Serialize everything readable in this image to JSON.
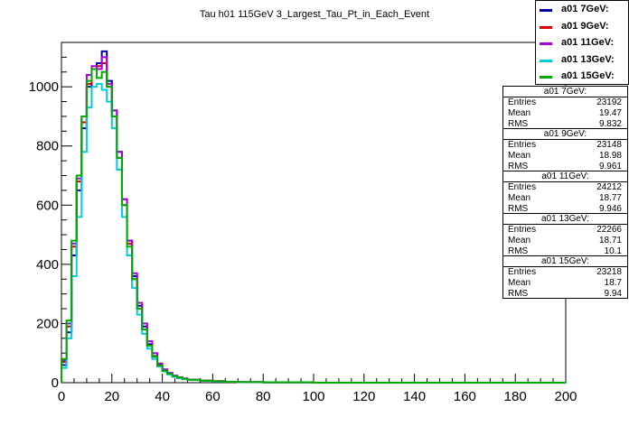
{
  "chart_data": {
    "type": "line",
    "title": "Tau h01 115GeV 3_Largest_Tau_Pt_in_Each_Event",
    "xlabel": "",
    "ylabel": "",
    "xlim": [
      0,
      200
    ],
    "ylim": [
      0,
      1150
    ],
    "x_ticks": [
      0,
      20,
      40,
      60,
      80,
      100,
      120,
      140,
      160,
      180,
      200
    ],
    "y_ticks": [
      0,
      200,
      400,
      600,
      800,
      1000
    ],
    "grid": false,
    "legend_position": "top-right",
    "series": [
      {
        "name": "a01 7GeV:",
        "color": "#0000aa",
        "x": [
          0,
          2,
          4,
          6,
          8,
          10,
          12,
          14,
          16,
          18,
          20,
          22,
          24,
          26,
          28,
          30,
          32,
          34,
          36,
          38,
          40,
          42,
          44,
          46,
          48,
          50,
          55,
          60,
          65,
          70,
          80,
          90,
          100,
          120,
          140,
          200
        ],
        "values": [
          60,
          170,
          430,
          650,
          860,
          1000,
          1060,
          1080,
          1120,
          1020,
          920,
          780,
          620,
          480,
          360,
          260,
          190,
          130,
          90,
          60,
          40,
          30,
          22,
          18,
          14,
          10,
          7,
          5,
          3,
          2,
          1,
          1,
          0,
          0,
          0,
          0
        ]
      },
      {
        "name": "a01 9GeV:",
        "color": "#dd0000",
        "x": [
          0,
          2,
          4,
          6,
          8,
          10,
          12,
          14,
          16,
          18,
          20,
          22,
          24,
          26,
          28,
          30,
          32,
          34,
          36,
          38,
          40,
          42,
          44,
          46,
          48,
          50,
          55,
          60,
          65,
          70,
          80,
          90,
          100,
          120,
          140,
          200
        ],
        "values": [
          70,
          190,
          460,
          680,
          880,
          1010,
          1060,
          1070,
          1080,
          1000,
          900,
          760,
          600,
          470,
          350,
          250,
          180,
          125,
          88,
          58,
          40,
          30,
          22,
          17,
          13,
          10,
          7,
          5,
          3,
          2,
          1,
          1,
          0,
          0,
          0,
          0
        ]
      },
      {
        "name": "a01 11GeV:",
        "color": "#aa00dd",
        "x": [
          0,
          2,
          4,
          6,
          8,
          10,
          12,
          14,
          16,
          18,
          20,
          22,
          24,
          26,
          28,
          30,
          32,
          34,
          36,
          38,
          40,
          42,
          44,
          46,
          48,
          50,
          55,
          60,
          65,
          70,
          80,
          90,
          100,
          120,
          140,
          200
        ],
        "values": [
          75,
          200,
          470,
          690,
          900,
          1040,
          1070,
          1060,
          1100,
          1010,
          920,
          780,
          620,
          480,
          370,
          270,
          200,
          140,
          100,
          65,
          45,
          33,
          24,
          18,
          14,
          10,
          7,
          5,
          3,
          2,
          1,
          1,
          0,
          0,
          0,
          0
        ]
      },
      {
        "name": "a01 13GeV:",
        "color": "#00ccdd",
        "x": [
          0,
          2,
          4,
          6,
          8,
          10,
          12,
          14,
          16,
          18,
          20,
          22,
          24,
          26,
          28,
          30,
          32,
          34,
          36,
          38,
          40,
          42,
          44,
          46,
          48,
          50,
          55,
          60,
          65,
          70,
          80,
          90,
          100,
          120,
          140,
          200
        ],
        "values": [
          50,
          150,
          360,
          560,
          780,
          930,
          1000,
          1010,
          990,
          950,
          860,
          720,
          560,
          430,
          320,
          230,
          165,
          115,
          80,
          55,
          38,
          28,
          20,
          15,
          12,
          9,
          6,
          4,
          3,
          2,
          1,
          1,
          0,
          0,
          0,
          0
        ]
      },
      {
        "name": "a01 15GeV:",
        "color": "#00aa00",
        "x": [
          0,
          2,
          4,
          6,
          8,
          10,
          12,
          14,
          16,
          18,
          20,
          22,
          24,
          26,
          28,
          30,
          32,
          34,
          36,
          38,
          40,
          42,
          44,
          46,
          48,
          50,
          55,
          60,
          65,
          70,
          80,
          90,
          100,
          120,
          140,
          200
        ],
        "values": [
          80,
          210,
          480,
          700,
          900,
          1020,
          1060,
          1030,
          1050,
          1000,
          900,
          760,
          600,
          460,
          350,
          250,
          180,
          125,
          88,
          58,
          40,
          30,
          22,
          17,
          13,
          10,
          7,
          5,
          3,
          2,
          1,
          1,
          0,
          0,
          0,
          0
        ]
      }
    ],
    "stats": [
      {
        "label": "a01 7GeV:",
        "rows": [
          {
            "k": "Entries",
            "v": "23192"
          },
          {
            "k": "Mean",
            "v": "19.47"
          },
          {
            "k": "RMS",
            "v": "9.832"
          }
        ]
      },
      {
        "label": "a01 9GeV:",
        "rows": [
          {
            "k": "Entries",
            "v": "23148"
          },
          {
            "k": "Mean",
            "v": "18.98"
          },
          {
            "k": "RMS",
            "v": "9.961"
          }
        ]
      },
      {
        "label": "a01 11GeV:",
        "rows": [
          {
            "k": "Entries",
            "v": "24212"
          },
          {
            "k": "Mean",
            "v": "18.77"
          },
          {
            "k": "RMS",
            "v": "9.946"
          }
        ]
      },
      {
        "label": "a01 13GeV:",
        "rows": [
          {
            "k": "Entries",
            "v": "22266"
          },
          {
            "k": "Mean",
            "v": "18.71"
          },
          {
            "k": "RMS",
            "v": "10.1"
          }
        ]
      },
      {
        "label": "a01 15GeV:",
        "rows": [
          {
            "k": "Entries",
            "v": "23218"
          },
          {
            "k": "Mean",
            "v": "18.7"
          },
          {
            "k": "RMS",
            "v": "9.94"
          }
        ]
      }
    ]
  }
}
